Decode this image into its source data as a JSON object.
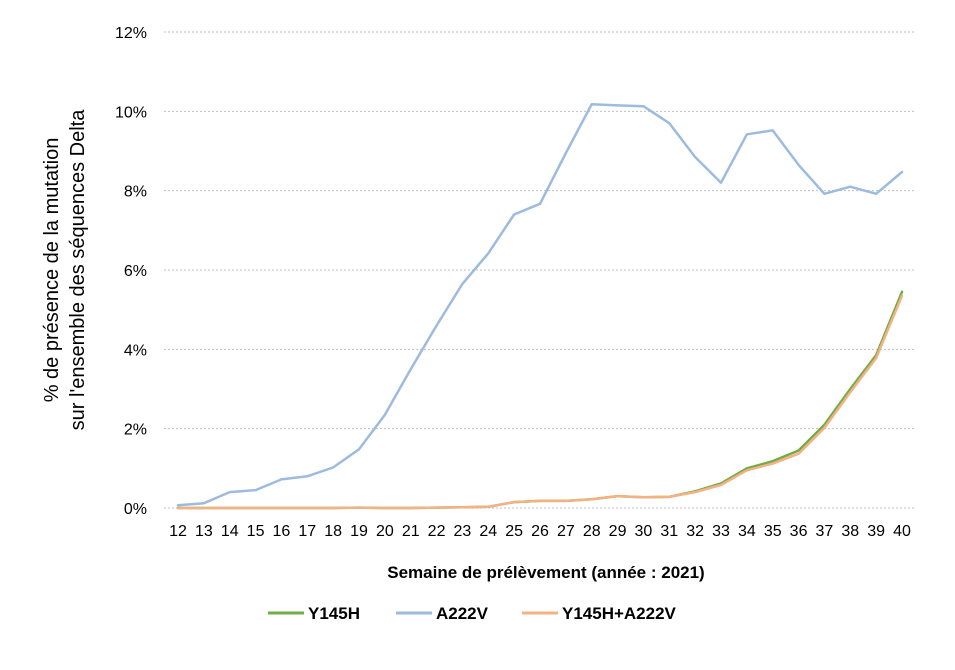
{
  "chart_data": {
    "type": "line",
    "title": "",
    "xlabel": "Semaine de prélèvement (année : 2021)",
    "ylabel_line1": "% de présence de la mutation",
    "ylabel_line2": "sur l'ensemble des séquences Delta",
    "ylim": [
      0,
      12
    ],
    "yticks": [
      "0%",
      "2%",
      "4%",
      "6%",
      "8%",
      "10%",
      "12%"
    ],
    "grid": true,
    "legend_position": "bottom",
    "x": [
      "12",
      "13",
      "14",
      "15",
      "16",
      "17",
      "18",
      "19",
      "20",
      "21",
      "22",
      "23",
      "24",
      "25",
      "26",
      "27",
      "28",
      "29",
      "30",
      "31",
      "32",
      "33",
      "34",
      "35",
      "36",
      "37",
      "38",
      "39",
      "40"
    ],
    "series": [
      {
        "name": "Y145H",
        "color": "#70ad47",
        "values": [
          0,
          0,
          0,
          0,
          0,
          0,
          0,
          0.01,
          0,
          0,
          0.01,
          0.02,
          0.03,
          0.15,
          0.18,
          0.18,
          0.22,
          0.3,
          0.27,
          0.28,
          0.42,
          0.62,
          1.0,
          1.18,
          1.45,
          2.1,
          3.0,
          3.85,
          5.45
        ]
      },
      {
        "name": "A222V",
        "color": "#9dbbde",
        "values": [
          0.07,
          0.12,
          0.4,
          0.45,
          0.72,
          0.8,
          1.02,
          1.48,
          2.35,
          3.5,
          4.6,
          5.65,
          6.42,
          7.4,
          7.67,
          8.95,
          10.18,
          10.15,
          10.13,
          9.7,
          8.85,
          8.2,
          9.42,
          9.52,
          8.65,
          7.92,
          8.1,
          7.92,
          8.47
        ]
      },
      {
        "name": "Y145H+A222V",
        "color": "#f4b183",
        "values": [
          0,
          0,
          0,
          0,
          0,
          0,
          0,
          0.01,
          0,
          0,
          0.01,
          0.02,
          0.03,
          0.15,
          0.18,
          0.18,
          0.22,
          0.3,
          0.27,
          0.28,
          0.4,
          0.58,
          0.95,
          1.12,
          1.37,
          2.02,
          2.92,
          3.78,
          5.35
        ]
      }
    ]
  }
}
